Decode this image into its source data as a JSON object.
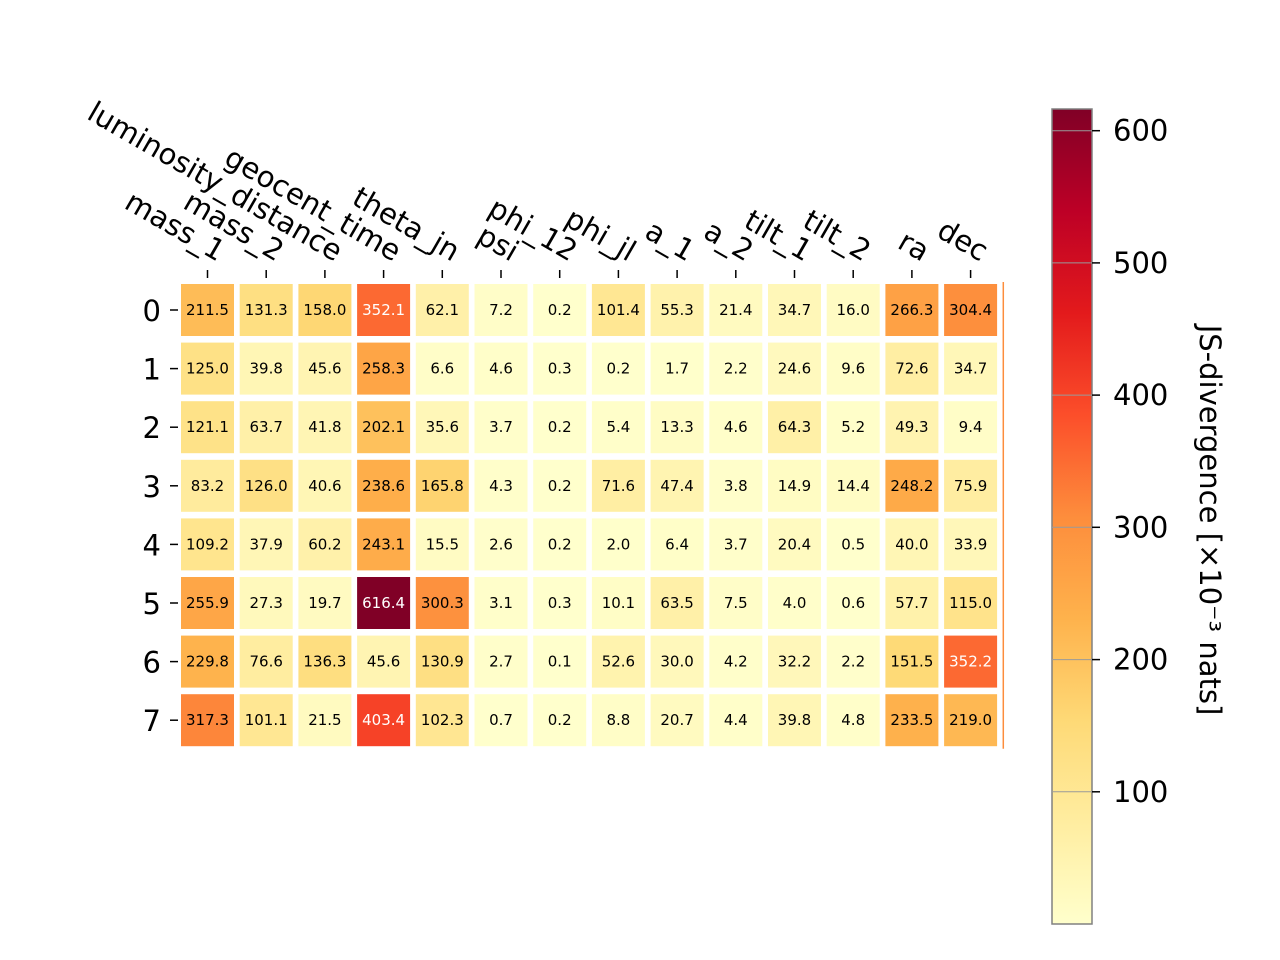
{
  "chart_data": {
    "type": "heatmap",
    "title": "",
    "xlabel": "",
    "ylabel": "",
    "x_labels": [
      "mass_1",
      "mass_2",
      "luminosity_distance",
      "geocent_time",
      "theta_jn",
      "psi",
      "phi_12",
      "phi_jl",
      "a_1",
      "a_2",
      "tilt_1",
      "tilt_2",
      "ra",
      "dec"
    ],
    "y_labels": [
      "0",
      "1",
      "2",
      "3",
      "4",
      "5",
      "6",
      "7"
    ],
    "values": [
      [
        211.5,
        131.3,
        158.0,
        352.1,
        62.1,
        7.2,
        0.2,
        101.4,
        55.3,
        21.4,
        34.7,
        16.0,
        266.3,
        304.4
      ],
      [
        125.0,
        39.8,
        45.6,
        258.3,
        6.6,
        4.6,
        0.3,
        0.2,
        1.7,
        2.2,
        24.6,
        9.6,
        72.6,
        34.7
      ],
      [
        121.1,
        63.7,
        41.8,
        202.1,
        35.6,
        3.7,
        0.2,
        5.4,
        13.3,
        4.6,
        64.3,
        5.2,
        49.3,
        9.4
      ],
      [
        83.2,
        126.0,
        40.6,
        238.6,
        165.8,
        4.3,
        0.2,
        71.6,
        47.4,
        3.8,
        14.9,
        14.4,
        248.2,
        75.9
      ],
      [
        109.2,
        37.9,
        60.2,
        243.1,
        15.5,
        2.6,
        0.2,
        2.0,
        6.4,
        3.7,
        20.4,
        0.5,
        40.0,
        33.9
      ],
      [
        255.9,
        27.3,
        19.7,
        616.4,
        300.3,
        3.1,
        0.3,
        10.1,
        63.5,
        7.5,
        4.0,
        0.6,
        57.7,
        115.0
      ],
      [
        229.8,
        76.6,
        136.3,
        45.6,
        130.9,
        2.7,
        0.1,
        52.6,
        30.0,
        4.2,
        32.2,
        2.2,
        151.5,
        352.2
      ],
      [
        317.3,
        101.1,
        21.5,
        403.4,
        102.3,
        0.7,
        0.2,
        8.8,
        20.7,
        4.4,
        39.8,
        4.8,
        233.5,
        219.0
      ]
    ],
    "colorbar": {
      "label": "JS-divergence [×10⁻³ nats]",
      "range": [
        0,
        616.4
      ],
      "ticks": [
        "100",
        "200",
        "300",
        "400",
        "500",
        "600"
      ],
      "colormap": "YlOrRd"
    },
    "grid": false
  }
}
